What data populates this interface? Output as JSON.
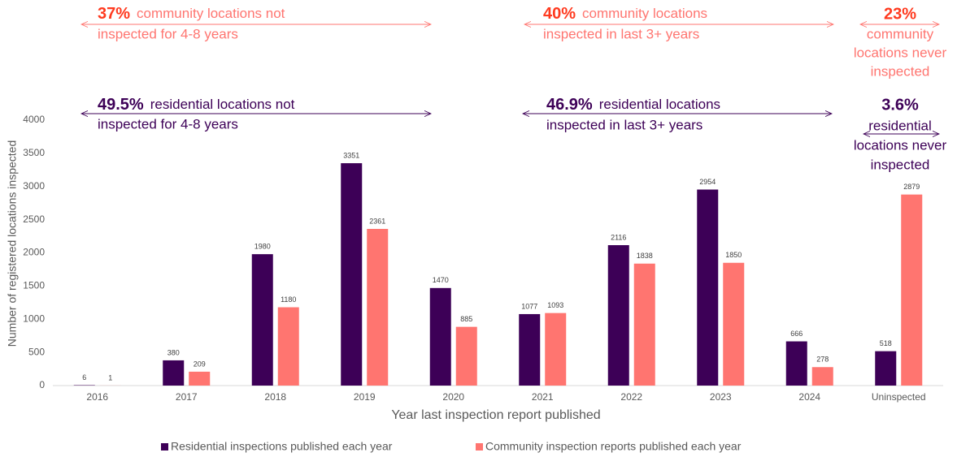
{
  "chart_data": {
    "type": "bar",
    "xlabel": "Year last inspection report published",
    "ylabel": "Number of registered locations inspected",
    "categories": [
      "2016",
      "2017",
      "2018",
      "2019",
      "2020",
      "2021",
      "2022",
      "2023",
      "2024",
      "Uninspected"
    ],
    "series": [
      {
        "name": "Residential inspections published each year",
        "color": "#3d0057",
        "values": [
          6,
          380,
          1980,
          3351,
          1470,
          1077,
          2116,
          2954,
          666,
          518
        ]
      },
      {
        "name": "Community inspection reports published each year",
        "color": "#ff7570",
        "values": [
          1,
          209,
          1180,
          2361,
          885,
          1093,
          1838,
          1850,
          278,
          2879
        ]
      }
    ],
    "ylim": [
      0,
      4000
    ],
    "yticks": [
      0,
      500,
      1000,
      1500,
      2000,
      2500,
      3000,
      3500,
      4000
    ],
    "grid": false,
    "legend": "bottom",
    "annotations": [
      {
        "pct": "37%",
        "lines": [
          "community locations not",
          "inspected for 4-8 years"
        ]
      },
      {
        "pct": "40%",
        "lines": [
          "community locations",
          "inspected in last 3+ years"
        ]
      },
      {
        "pct": "23%",
        "lines": [
          "community",
          "locations never",
          "inspected"
        ]
      },
      {
        "pct": "49.5%",
        "lines": [
          "residential locations not",
          "inspected for 4-8 years"
        ]
      },
      {
        "pct": "46.9%",
        "lines": [
          "residential locations",
          "inspected in last 3+ years"
        ]
      },
      {
        "pct": "3.6%",
        "lines": [
          "residential",
          "locations never",
          "inspected"
        ]
      }
    ]
  }
}
